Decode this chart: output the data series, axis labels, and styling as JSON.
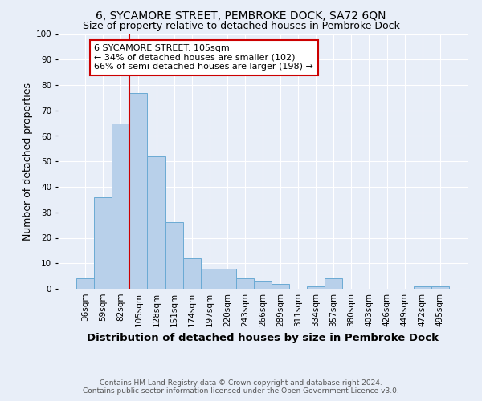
{
  "title": "6, SYCAMORE STREET, PEMBROKE DOCK, SA72 6QN",
  "subtitle": "Size of property relative to detached houses in Pembroke Dock",
  "xlabel": "Distribution of detached houses by size in Pembroke Dock",
  "ylabel": "Number of detached properties",
  "footer_line1": "Contains HM Land Registry data © Crown copyright and database right 2024.",
  "footer_line2": "Contains public sector information licensed under the Open Government Licence v3.0.",
  "categories": [
    "36sqm",
    "59sqm",
    "82sqm",
    "105sqm",
    "128sqm",
    "151sqm",
    "174sqm",
    "197sqm",
    "220sqm",
    "243sqm",
    "266sqm",
    "289sqm",
    "311sqm",
    "334sqm",
    "357sqm",
    "380sqm",
    "403sqm",
    "426sqm",
    "449sqm",
    "472sqm",
    "495sqm"
  ],
  "values": [
    4,
    36,
    65,
    77,
    52,
    26,
    12,
    8,
    8,
    4,
    3,
    2,
    0,
    1,
    4,
    0,
    0,
    0,
    0,
    1,
    1
  ],
  "bar_color": "#b8d0ea",
  "bar_edge_color": "#6aaad4",
  "vline_x": 3,
  "vline_color": "#cc0000",
  "annotation_title": "6 SYCAMORE STREET: 105sqm",
  "annotation_line1": "← 34% of detached houses are smaller (102)",
  "annotation_line2": "66% of semi-detached houses are larger (198) →",
  "annotation_box_color": "#cc0000",
  "ylim": [
    0,
    100
  ],
  "yticks": [
    0,
    10,
    20,
    30,
    40,
    50,
    60,
    70,
    80,
    90,
    100
  ],
  "background_color": "#e8eef8",
  "title_fontsize": 10,
  "subtitle_fontsize": 9,
  "axis_label_fontsize": 9,
  "tick_fontsize": 7.5,
  "footer_fontsize": 6.5,
  "ann_fontsize": 8
}
